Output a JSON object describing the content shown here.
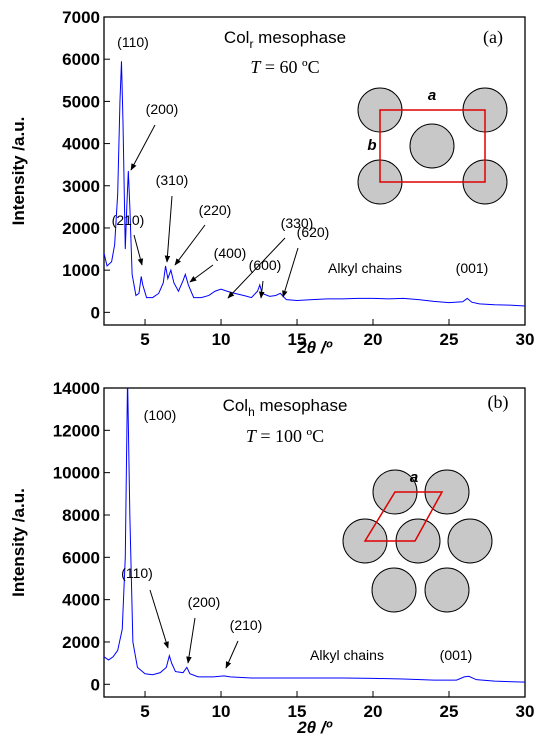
{
  "chart_data": [
    {
      "type": "line",
      "title": [
        "Col",
        "r",
        " mesophase"
      ],
      "subtitle": [
        "T",
        " = 60 ºC"
      ],
      "panel_label": "(a)",
      "xlabel": "2θ /º",
      "ylabel": "Intensity /a.u.",
      "x": [
        2.3,
        2.5,
        2.8,
        3.0,
        3.2,
        3.35,
        3.45,
        3.55,
        3.7,
        3.8,
        3.9,
        4.0,
        4.15,
        4.4,
        4.6,
        4.75,
        4.85,
        5.1,
        5.5,
        5.9,
        6.2,
        6.35,
        6.5,
        6.7,
        6.9,
        7.2,
        7.5,
        7.65,
        7.85,
        8.2,
        8.7,
        9.2,
        9.6,
        10.0,
        10.4,
        10.9,
        11.5,
        12.0,
        12.4,
        12.55,
        12.7,
        13.2,
        13.6,
        13.9,
        14.3,
        15,
        16,
        17,
        18,
        19,
        20,
        21,
        22,
        23,
        24,
        25,
        25.9,
        26.2,
        26.5,
        27,
        28,
        29,
        30
      ],
      "series": [
        {
          "color": "#0000ff",
          "values": [
            1400,
            1100,
            1200,
            1600,
            2800,
            5000,
            5950,
            4500,
            1500,
            2500,
            3350,
            2500,
            900,
            400,
            450,
            850,
            650,
            350,
            350,
            450,
            700,
            1100,
            800,
            1000,
            700,
            500,
            750,
            900,
            650,
            350,
            350,
            400,
            500,
            550,
            500,
            450,
            400,
            350,
            500,
            650,
            450,
            380,
            400,
            450,
            300,
            280,
            300,
            320,
            320,
            330,
            330,
            320,
            330,
            300,
            260,
            230,
            250,
            330,
            240,
            200,
            180,
            170,
            150
          ]
        }
      ],
      "xlim": [
        2.3,
        30
      ],
      "ylim": [
        -300,
        7000
      ],
      "xticks": [
        5,
        10,
        15,
        20,
        25,
        30
      ],
      "yticks": [
        0,
        1000,
        2000,
        3000,
        4000,
        5000,
        6000,
        7000
      ],
      "annotations": [
        "(110)",
        "(200)",
        "(210)",
        "(310)",
        "(220)",
        "(400)",
        "(330)",
        "(600)",
        "(620)",
        "Alkyl chains",
        "(001)"
      ],
      "diagram_labels": [
        "a",
        "b"
      ]
    },
    {
      "type": "line",
      "title": [
        "Col",
        "h",
        " mesophase"
      ],
      "subtitle": [
        "T",
        " = 100 ºC"
      ],
      "panel_label": "(b)",
      "xlabel": "2θ /º",
      "ylabel": "Intensity /a.u.",
      "x": [
        2.3,
        2.6,
        2.9,
        3.2,
        3.5,
        3.7,
        3.85,
        4.0,
        4.2,
        4.5,
        5,
        5.5,
        6.0,
        6.4,
        6.6,
        6.75,
        7.0,
        7.5,
        7.75,
        7.95,
        8.5,
        9.5,
        10.2,
        10.6,
        12,
        14,
        16,
        18,
        20,
        22,
        24,
        25.5,
        26.0,
        26.3,
        26.8,
        28,
        30
      ],
      "series": [
        {
          "color": "#0000ff",
          "values": [
            1300,
            1150,
            1300,
            1600,
            2600,
            6000,
            14500,
            8000,
            2000,
            800,
            500,
            450,
            550,
            800,
            1350,
            1000,
            600,
            550,
            800,
            500,
            350,
            350,
            400,
            350,
            300,
            300,
            300,
            300,
            280,
            250,
            200,
            200,
            350,
            380,
            220,
            150,
            100
          ]
        }
      ],
      "xlim": [
        2.3,
        30
      ],
      "ylim": [
        -600,
        14000
      ],
      "xticks": [
        5,
        10,
        15,
        20,
        25,
        30
      ],
      "yticks": [
        0,
        2000,
        4000,
        6000,
        8000,
        10000,
        12000,
        14000
      ],
      "annotations": [
        "(100)",
        "(110)",
        "(200)",
        "(210)",
        "Alkyl chains",
        "(001)"
      ],
      "diagram_labels": [
        "a"
      ]
    }
  ]
}
